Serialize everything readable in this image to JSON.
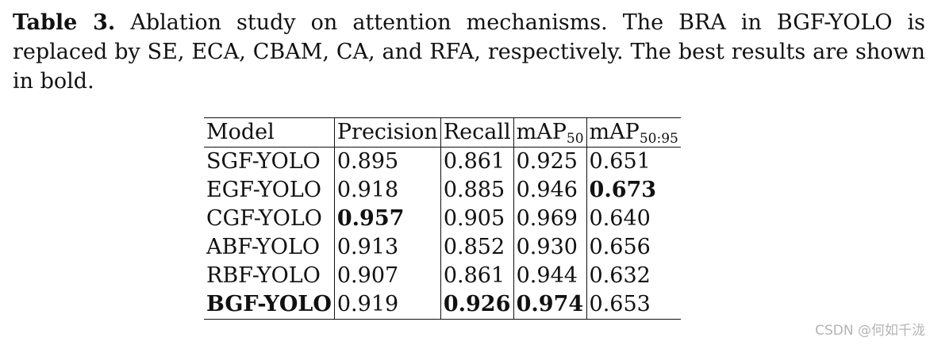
{
  "caption": {
    "label": "Table 3.",
    "text": "Ablation study on attention mechanisms. The BRA in BGF-YOLO is replaced by SE, ECA, CBAM, CA, and RFA, respectively. The best results are shown in bold."
  },
  "table": {
    "headers": {
      "model": "Model",
      "precision": "Precision",
      "recall": "Recall",
      "map50_base": "mAP",
      "map50_sub": "50",
      "map5095_base": "mAP",
      "map5095_sub": "50:95"
    },
    "rows": [
      {
        "model": "SGF-YOLO",
        "precision": "0.895",
        "recall": "0.861",
        "map50": "0.925",
        "map5095": "0.651"
      },
      {
        "model": "EGF-YOLO",
        "precision": "0.918",
        "recall": "0.885",
        "map50": "0.946",
        "map5095": "0.673"
      },
      {
        "model": "CGF-YOLO",
        "precision": "0.957",
        "recall": "0.905",
        "map50": "0.969",
        "map5095": "0.640"
      },
      {
        "model": "ABF-YOLO",
        "precision": "0.913",
        "recall": "0.852",
        "map50": "0.930",
        "map5095": "0.656"
      },
      {
        "model": "RBF-YOLO",
        "precision": "0.907",
        "recall": "0.861",
        "map50": "0.944",
        "map5095": "0.632"
      },
      {
        "model": "BGF-YOLO",
        "precision": "0.919",
        "recall": "0.926",
        "map50": "0.974",
        "map5095": "0.653"
      }
    ]
  },
  "watermark": "CSDN @何如千泷"
}
